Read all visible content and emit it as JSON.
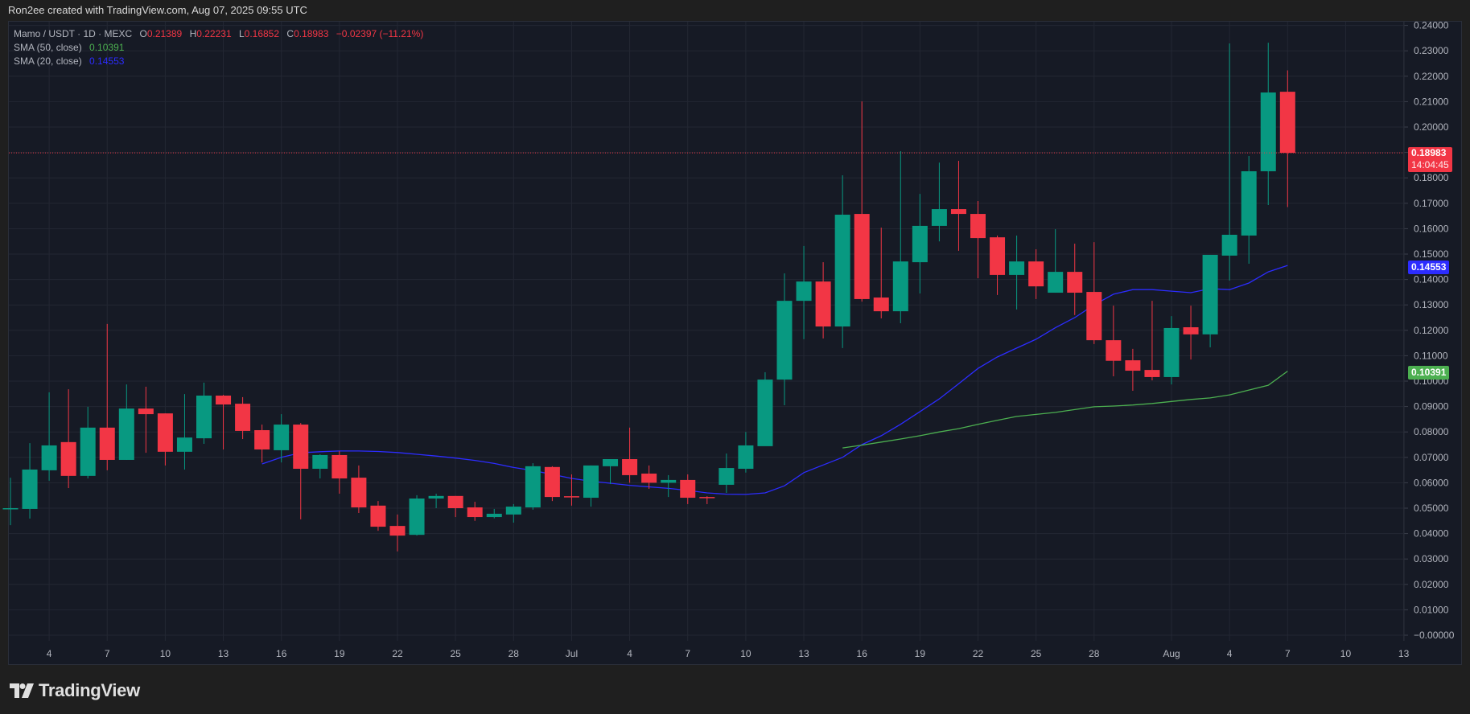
{
  "credit": "Ron2ee created with TradingView.com, Aug 07, 2025 09:55 UTC",
  "legend": {
    "symbol": "Mamo / USDT · 1D · MEXC",
    "o_label": "O",
    "o": "0.21389",
    "h_label": "H",
    "h": "0.22231",
    "l_label": "L",
    "l": "0.16852",
    "c_label": "C",
    "c": "0.18983",
    "change": "−0.02397 (−11.21%)",
    "sma50_label": "SMA (50, close)",
    "sma50_value": "0.10391",
    "sma20_label": "SMA (20, close)",
    "sma20_value": "0.14553"
  },
  "price_tags": {
    "last_price": "0.18983",
    "countdown": "14:04:45",
    "sma20": "0.14553",
    "sma50": "0.10391"
  },
  "colors": {
    "up": "#089981",
    "down": "#f23645",
    "sma20": "#2c2cff",
    "sma50": "#4caf50",
    "background": "#161a25",
    "grid": "#232733"
  },
  "footer": {
    "brand": "TradingView"
  },
  "chart_data": {
    "type": "candlestick",
    "title": "Mamo / USDT · 1D · MEXC",
    "xlabel": "",
    "ylabel": "",
    "ylim": [
      0,
      0.24
    ],
    "grid": true,
    "y_ticks": [
      "0.24000",
      "0.23000",
      "0.22000",
      "0.21000",
      "0.20000",
      "0.19000",
      "0.18000",
      "0.17000",
      "0.16000",
      "0.15000",
      "0.14000",
      "0.13000",
      "0.12000",
      "0.11000",
      "0.10000",
      "0.09000",
      "0.08000",
      "0.07000",
      "0.06000",
      "0.05000",
      "0.04000",
      "0.03000",
      "0.02000",
      "0.01000",
      "−0.00000"
    ],
    "x_ticks": [
      {
        "label": "4",
        "day": 2
      },
      {
        "label": "7",
        "day": 5
      },
      {
        "label": "10",
        "day": 8
      },
      {
        "label": "13",
        "day": 11
      },
      {
        "label": "16",
        "day": 14
      },
      {
        "label": "19",
        "day": 17
      },
      {
        "label": "22",
        "day": 20
      },
      {
        "label": "25",
        "day": 23
      },
      {
        "label": "28",
        "day": 26
      },
      {
        "label": "Jul",
        "day": 29
      },
      {
        "label": "4",
        "day": 32
      },
      {
        "label": "7",
        "day": 35
      },
      {
        "label": "10",
        "day": 38
      },
      {
        "label": "13",
        "day": 41
      },
      {
        "label": "16",
        "day": 44
      },
      {
        "label": "19",
        "day": 47
      },
      {
        "label": "22",
        "day": 50
      },
      {
        "label": "25",
        "day": 53
      },
      {
        "label": "28",
        "day": 56
      },
      {
        "label": "Aug",
        "day": 60
      },
      {
        "label": "4",
        "day": 63
      },
      {
        "label": "7",
        "day": 66
      },
      {
        "label": "10",
        "day": 69
      },
      {
        "label": "13",
        "day": 72
      }
    ],
    "first_date": "2025-06-02",
    "candles": [
      [
        "Jun 2",
        0.0497,
        0.062,
        0.0433,
        0.05
      ],
      [
        "Jun 3",
        0.0497,
        0.0756,
        0.0459,
        0.0652
      ],
      [
        "Jun 4",
        0.0649,
        0.0956,
        0.0608,
        0.0747
      ],
      [
        "Jun 5",
        0.076,
        0.0968,
        0.0579,
        0.0627
      ],
      [
        "Jun 6",
        0.0627,
        0.0899,
        0.0617,
        0.0817
      ],
      [
        "Jun 7",
        0.0817,
        0.1225,
        0.0649,
        0.069
      ],
      [
        "Jun 8",
        0.069,
        0.0987,
        0.069,
        0.0892
      ],
      [
        "Jun 9",
        0.0892,
        0.0978,
        0.0718,
        0.087
      ],
      [
        "Jun 10",
        0.0873,
        0.0873,
        0.0668,
        0.0722
      ],
      [
        "Jun 11",
        0.0722,
        0.0949,
        0.0652,
        0.0778
      ],
      [
        "Jun 12",
        0.0775,
        0.0994,
        0.0753,
        0.0943
      ],
      [
        "Jun 13",
        0.0943,
        0.0946,
        0.0731,
        0.0908
      ],
      [
        "Jun 14",
        0.0911,
        0.0937,
        0.0772,
        0.0804
      ],
      [
        "Jun 15",
        0.0807,
        0.0829,
        0.068,
        0.0731
      ],
      [
        "Jun 16",
        0.0728,
        0.087,
        0.068,
        0.0829
      ],
      [
        "Jun 17",
        0.0829,
        0.0835,
        0.0456,
        0.0655
      ],
      [
        "Jun 18",
        0.0655,
        0.0712,
        0.0617,
        0.0709
      ],
      [
        "Jun 19",
        0.0709,
        0.0725,
        0.0557,
        0.0617
      ],
      [
        "Jun 20",
        0.062,
        0.0668,
        0.0481,
        0.0503
      ],
      [
        "Jun 21",
        0.051,
        0.0528,
        0.0411,
        0.0427
      ],
      [
        "Jun 22",
        0.043,
        0.0475,
        0.033,
        0.0392
      ],
      [
        "Jun 23",
        0.0395,
        0.0551,
        0.0392,
        0.0538
      ],
      [
        "Jun 24",
        0.0538,
        0.0557,
        0.05,
        0.0548
      ],
      [
        "Jun 25",
        0.0548,
        0.0548,
        0.0465,
        0.05
      ],
      [
        "Jun 26",
        0.0503,
        0.0525,
        0.045,
        0.0465
      ],
      [
        "Jun 27",
        0.0465,
        0.0497,
        0.046,
        0.0478
      ],
      [
        "Jun 28",
        0.0475,
        0.0516,
        0.0443,
        0.0506
      ],
      [
        "Jun 29",
        0.0503,
        0.0677,
        0.0494,
        0.0665
      ],
      [
        "Jun 30",
        0.0662,
        0.0665,
        0.0528,
        0.0544
      ],
      [
        "Jul 1",
        0.0547,
        0.0633,
        0.051,
        0.0544
      ],
      [
        "Jul 2",
        0.0541,
        0.0668,
        0.0506,
        0.0668
      ],
      [
        "Jul 3",
        0.0665,
        0.0693,
        0.0595,
        0.0693
      ],
      [
        "Jul 4",
        0.0693,
        0.0817,
        0.06,
        0.063
      ],
      [
        "Jul 5",
        0.0636,
        0.0668,
        0.0576,
        0.06
      ],
      [
        "Jul 6",
        0.06,
        0.063,
        0.0544,
        0.0611
      ],
      [
        "Jul 7",
        0.0611,
        0.0633,
        0.0516,
        0.0541
      ],
      [
        "Jul 8",
        0.0544,
        0.0547,
        0.0516,
        0.0541
      ],
      [
        "Jul 9",
        0.0592,
        0.0715,
        0.056,
        0.0658
      ],
      [
        "Jul 10",
        0.0655,
        0.08,
        0.064,
        0.0747
      ],
      [
        "Jul 11",
        0.0744,
        0.1035,
        0.087,
        0.1006
      ],
      [
        "Jul 12",
        0.1006,
        0.1424,
        0.0905,
        0.1316
      ],
      [
        "Jul 13",
        0.1316,
        0.1532,
        0.1165,
        0.1392
      ],
      [
        "Jul 14",
        0.1392,
        0.1468,
        0.1168,
        0.1215
      ],
      [
        "Jul 15",
        0.1215,
        0.181,
        0.113,
        0.1655
      ],
      [
        "Jul 16",
        0.1658,
        0.2101,
        0.1313,
        0.1323
      ],
      [
        "Jul 17",
        0.1329,
        0.1604,
        0.1247,
        0.1275
      ],
      [
        "Jul 18",
        0.1275,
        0.1905,
        0.1228,
        0.1471
      ],
      [
        "Jul 19",
        0.1468,
        0.1737,
        0.1345,
        0.1611
      ],
      [
        "Jul 20",
        0.1611,
        0.186,
        0.155,
        0.1677
      ],
      [
        "Jul 21",
        0.1677,
        0.1867,
        0.1513,
        0.1658
      ],
      [
        "Jul 22",
        0.1658,
        0.1709,
        0.1405,
        0.1563
      ],
      [
        "Jul 23",
        0.1566,
        0.1573,
        0.1339,
        0.1418
      ],
      [
        "Jul 24",
        0.1418,
        0.1573,
        0.1282,
        0.1471
      ],
      [
        "Jul 25",
        0.1471,
        0.1519,
        0.1323,
        0.1373
      ],
      [
        "Jul 26",
        0.1348,
        0.1598,
        0.1348,
        0.143
      ],
      [
        "Jul 27",
        0.143,
        0.1541,
        0.126,
        0.1348
      ],
      [
        "Jul 28",
        0.1351,
        0.1547,
        0.1146,
        0.1161
      ],
      [
        "Jul 29",
        0.1161,
        0.1297,
        0.1019,
        0.108
      ],
      [
        "Jul 30",
        0.1082,
        0.1127,
        0.0962,
        0.1041
      ],
      [
        "Jul 31",
        0.1044,
        0.1316,
        0.1003,
        0.1016
      ],
      [
        "Aug 1",
        0.1016,
        0.1256,
        0.0987,
        0.1209
      ],
      [
        "Aug 2",
        0.1212,
        0.1297,
        0.1085,
        0.1184
      ],
      [
        "Aug 3",
        0.1184,
        0.1497,
        0.1133,
        0.1497
      ],
      [
        "Aug 4",
        0.1494,
        0.2329,
        0.1396,
        0.1576
      ],
      [
        "Aug 5",
        0.1573,
        0.1886,
        0.1462,
        0.1826
      ],
      [
        "Aug 6",
        0.1826,
        0.2332,
        0.1693,
        0.2136
      ],
      [
        "Aug 7",
        0.21389,
        0.22231,
        0.16852,
        0.18983
      ]
    ],
    "series": [
      {
        "name": "SMA (20, close)",
        "color": "#2c2cff",
        "points": [
          [
            13,
            0.0674
          ],
          [
            14,
            0.07
          ],
          [
            15,
            0.0718
          ],
          [
            16,
            0.0722
          ],
          [
            17,
            0.0725
          ],
          [
            18,
            0.0725
          ],
          [
            19,
            0.0723
          ],
          [
            20,
            0.0719
          ],
          [
            21,
            0.0712
          ],
          [
            22,
            0.0705
          ],
          [
            23,
            0.0697
          ],
          [
            24,
            0.0688
          ],
          [
            25,
            0.0676
          ],
          [
            26,
            0.066
          ],
          [
            27,
            0.0648
          ],
          [
            28,
            0.0633
          ],
          [
            29,
            0.0617
          ],
          [
            30,
            0.0606
          ],
          [
            31,
            0.0598
          ],
          [
            32,
            0.059
          ],
          [
            33,
            0.0584
          ],
          [
            34,
            0.0578
          ],
          [
            35,
            0.057
          ],
          [
            36,
            0.056
          ],
          [
            37,
            0.0555
          ],
          [
            38,
            0.0554
          ],
          [
            39,
            0.056
          ],
          [
            40,
            0.0588
          ],
          [
            41,
            0.064
          ],
          [
            42,
            0.067
          ],
          [
            43,
            0.07
          ],
          [
            44,
            0.075
          ],
          [
            45,
            0.0785
          ],
          [
            46,
            0.083
          ],
          [
            47,
            0.088
          ],
          [
            48,
            0.093
          ],
          [
            49,
            0.099
          ],
          [
            50,
            0.105
          ],
          [
            51,
            0.1095
          ],
          [
            52,
            0.113
          ],
          [
            53,
            0.1165
          ],
          [
            54,
            0.121
          ],
          [
            55,
            0.125
          ],
          [
            56,
            0.13
          ],
          [
            57,
            0.1342
          ],
          [
            58,
            0.136
          ],
          [
            59,
            0.136
          ],
          [
            60,
            0.1354
          ],
          [
            61,
            0.1348
          ],
          [
            62,
            0.1364
          ],
          [
            63,
            0.136
          ],
          [
            64,
            0.1386
          ],
          [
            65,
            0.143
          ],
          [
            66,
            0.14553
          ]
        ]
      },
      {
        "name": "SMA (50, close)",
        "color": "#4caf50",
        "points": [
          [
            43,
            0.0737
          ],
          [
            44,
            0.0748
          ],
          [
            45,
            0.076
          ],
          [
            46,
            0.0772
          ],
          [
            47,
            0.0785
          ],
          [
            48,
            0.08
          ],
          [
            49,
            0.0813
          ],
          [
            50,
            0.083
          ],
          [
            51,
            0.0846
          ],
          [
            52,
            0.0861
          ],
          [
            53,
            0.0869
          ],
          [
            54,
            0.0877
          ],
          [
            55,
            0.0888
          ],
          [
            56,
            0.0899
          ],
          [
            57,
            0.0902
          ],
          [
            58,
            0.0906
          ],
          [
            59,
            0.0912
          ],
          [
            60,
            0.092
          ],
          [
            61,
            0.0928
          ],
          [
            62,
            0.0934
          ],
          [
            63,
            0.0946
          ],
          [
            64,
            0.0965
          ],
          [
            65,
            0.0984
          ],
          [
            66,
            0.10391
          ]
        ]
      }
    ],
    "last_price_line": 0.18983
  }
}
